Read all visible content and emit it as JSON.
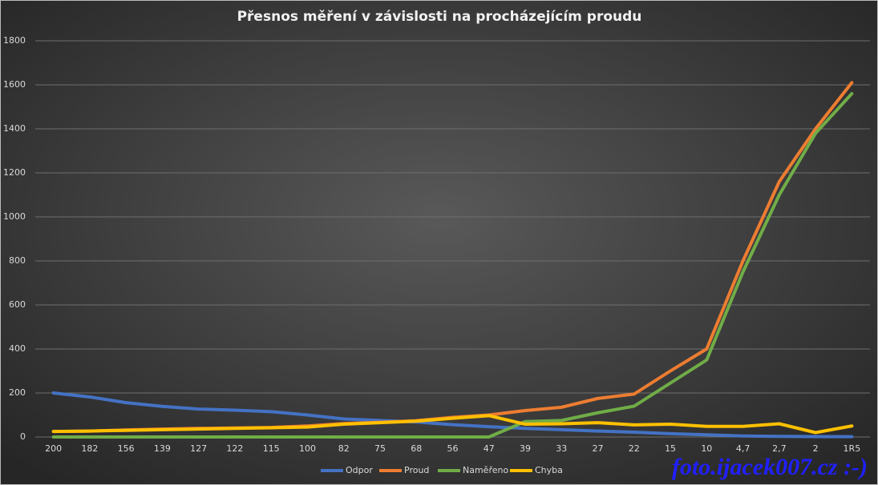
{
  "chart_data": {
    "type": "line",
    "title": "Přesnos měření v závislosti na procházejícím proudu",
    "watermark": "foto.ijacek007.cz :-)",
    "categories": [
      "200",
      "182",
      "156",
      "139",
      "127",
      "122",
      "115",
      "100",
      "82",
      "75",
      "68",
      "56",
      "47",
      "39",
      "33",
      "27",
      "22",
      "15",
      "10",
      "4,7",
      "2,7",
      "2",
      "1R5"
    ],
    "series": [
      {
        "name": "Odpor",
        "color": "#4472c4",
        "values": [
          200,
          182,
          156,
          139,
          127,
          122,
          115,
          100,
          82,
          75,
          68,
          56,
          47,
          39,
          33,
          27,
          22,
          15,
          10,
          4.7,
          2.7,
          2,
          1.5
        ]
      },
      {
        "name": "Proud",
        "color": "#ed7d31",
        "values": [
          25,
          27,
          32,
          36,
          39,
          41,
          43,
          50,
          61,
          67,
          74,
          89,
          100,
          120,
          135,
          175,
          195,
          300,
          400,
          800,
          1160,
          1400,
          1610
        ]
      },
      {
        "name": "Naměřeno",
        "color": "#70ad47",
        "values": [
          0,
          0,
          0,
          0,
          0,
          0,
          0,
          0,
          0,
          0,
          0,
          0,
          0,
          70,
          75,
          110,
          140,
          245,
          350,
          750,
          1100,
          1380,
          1560
        ]
      },
      {
        "name": "Chyba",
        "color": "#ffc000",
        "values": [
          25,
          27,
          30,
          33,
          36,
          39,
          42,
          45,
          58,
          65,
          72,
          85,
          97,
          58,
          60,
          65,
          55,
          58,
          48,
          48,
          60,
          20,
          50
        ]
      }
    ],
    "ylim": [
      0,
      1800
    ],
    "yticks": [
      0,
      200,
      400,
      600,
      800,
      1000,
      1200,
      1400,
      1600,
      1800
    ],
    "grid": true
  }
}
